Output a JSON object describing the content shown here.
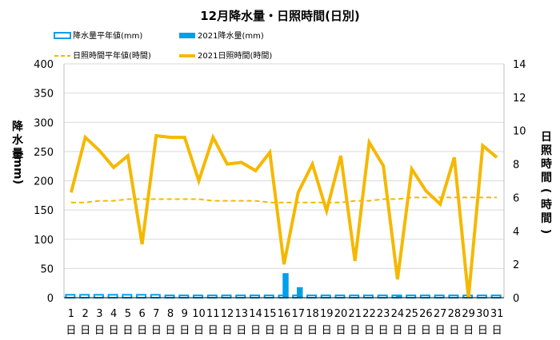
{
  "chart_data": {
    "type": "bar+line",
    "title": "12月降水量・日照時間(日別)",
    "ylabel_left": "降水量(mm)",
    "ylabel_right": "日照時間(時間)",
    "ylim_left": [
      0,
      400
    ],
    "ylim_right": [
      0,
      14
    ],
    "yticks_left": [
      0,
      50,
      100,
      150,
      200,
      250,
      300,
      350,
      400
    ],
    "yticks_right": [
      0,
      2,
      4,
      6,
      8,
      10,
      12,
      14
    ],
    "categories": [
      "1",
      "2",
      "3",
      "4",
      "5",
      "6",
      "7",
      "8",
      "9",
      "10",
      "11",
      "12",
      "13",
      "14",
      "15",
      "16",
      "17",
      "18",
      "19",
      "20",
      "21",
      "22",
      "23",
      "24",
      "25",
      "26",
      "27",
      "28",
      "29",
      "30",
      "31"
    ],
    "day_unit": "日",
    "grid": true,
    "legend_position": "top",
    "series": [
      {
        "name": "降水量平年値(mm)",
        "kind": "bar-outline",
        "axis": "left",
        "color": "#00A0E9",
        "values": [
          5,
          5,
          5,
          5,
          5,
          5,
          5,
          4,
          4,
          4,
          4,
          4,
          4,
          4,
          4,
          4,
          4,
          4,
          4,
          4,
          4,
          4,
          4,
          4,
          4,
          4,
          4,
          4,
          4,
          4,
          4
        ]
      },
      {
        "name": "2021降水量(mm)",
        "kind": "bar",
        "axis": "left",
        "color": "#00A0E9",
        "values": [
          0,
          0,
          0,
          0,
          0,
          0,
          0,
          0,
          0,
          0,
          0,
          0,
          0,
          0,
          0,
          42,
          18,
          0,
          0,
          0,
          0,
          0,
          0,
          5,
          0,
          0,
          0,
          0,
          0,
          0,
          0
        ]
      },
      {
        "name": "日照時間平年値(時間)",
        "kind": "line-dashed",
        "axis": "right",
        "color": "#F5B800",
        "values": [
          5.7,
          5.7,
          5.8,
          5.8,
          5.9,
          5.9,
          5.9,
          5.9,
          5.9,
          5.9,
          5.8,
          5.8,
          5.8,
          5.8,
          5.7,
          5.7,
          5.7,
          5.7,
          5.7,
          5.7,
          5.8,
          5.8,
          5.9,
          5.9,
          6.0,
          6.0,
          6.0,
          6.0,
          6.0,
          6.0,
          6.0
        ]
      },
      {
        "name": "2021日照時間(時間)",
        "kind": "line",
        "axis": "right",
        "color": "#F5B800",
        "values": [
          6.3,
          9.6,
          8.8,
          7.8,
          8.5,
          3.2,
          9.7,
          9.6,
          9.6,
          7.0,
          9.6,
          8.0,
          8.1,
          7.6,
          8.7,
          2.0,
          6.3,
          8.0,
          5.2,
          8.5,
          2.2,
          9.3,
          7.9,
          1.1,
          7.7,
          6.4,
          5.6,
          8.4,
          0.0,
          9.1,
          8.4
        ]
      }
    ]
  }
}
